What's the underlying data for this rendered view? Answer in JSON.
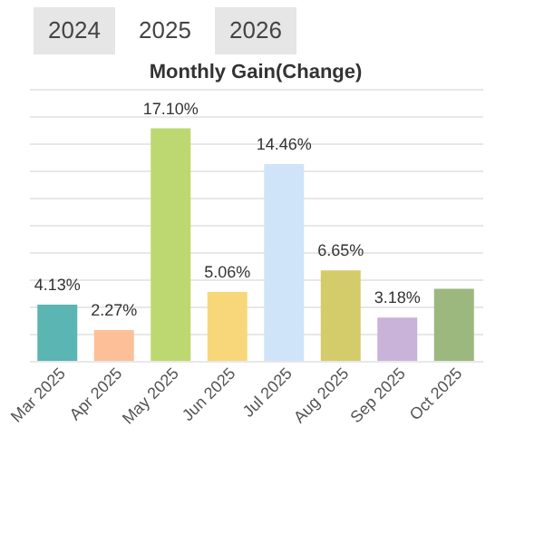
{
  "chart_data": {
    "type": "bar",
    "title": "Monthly Gain(Change)",
    "annotations": [
      "2024",
      "2025",
      "2026"
    ],
    "categories": [
      "Mar 2025",
      "Apr 2025",
      "May 2025",
      "Jun 2025",
      "Jul 2025",
      "Aug 2025",
      "Sep 2025",
      "Oct 2025"
    ],
    "values": [
      4.13,
      2.27,
      17.1,
      5.06,
      14.46,
      6.65,
      3.18,
      5.3
    ],
    "value_labels": [
      "4.13%",
      "2.27%",
      "17.10%",
      "5.06%",
      "14.46%",
      "6.65%",
      "3.18%",
      null
    ],
    "colors": [
      "#5ab5b3",
      "#fdbf98",
      "#bdd870",
      "#f8d77a",
      "#cfe4f8",
      "#d4cb6b",
      "#c9b3d9",
      "#9cb87f"
    ],
    "ylim": [
      0,
      20
    ],
    "grid": "y",
    "tick_labels": "x"
  }
}
